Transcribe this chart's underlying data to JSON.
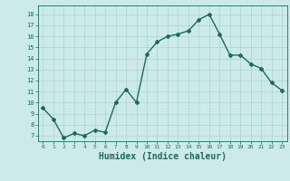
{
  "x": [
    0,
    1,
    2,
    3,
    4,
    5,
    6,
    7,
    8,
    9,
    10,
    11,
    12,
    13,
    14,
    15,
    16,
    17,
    18,
    19,
    20,
    21,
    22,
    23
  ],
  "y": [
    9.5,
    8.5,
    6.8,
    7.2,
    7.0,
    7.5,
    7.3,
    10.0,
    11.2,
    10.0,
    14.4,
    15.5,
    16.0,
    16.2,
    16.5,
    17.5,
    18.0,
    16.2,
    14.3,
    14.3,
    13.5,
    13.1,
    11.8,
    11.1
  ],
  "line_color": "#1a6b5a",
  "marker": "D",
  "markersize": 2.0,
  "linewidth": 1.0,
  "bg_color": "#cdeaea",
  "grid_color": "#add4d4",
  "xlabel": "Humidex (Indice chaleur)",
  "xlabel_fontsize": 7,
  "tick_color": "#1a6b5a",
  "ylim": [
    6.5,
    18.8
  ],
  "yticks": [
    7,
    8,
    9,
    10,
    11,
    12,
    13,
    14,
    15,
    16,
    17,
    18
  ],
  "xlim": [
    -0.5,
    23.5
  ],
  "xticks": [
    0,
    1,
    2,
    3,
    4,
    5,
    6,
    7,
    8,
    9,
    10,
    11,
    12,
    13,
    14,
    15,
    16,
    17,
    18,
    19,
    20,
    21,
    22,
    23
  ]
}
